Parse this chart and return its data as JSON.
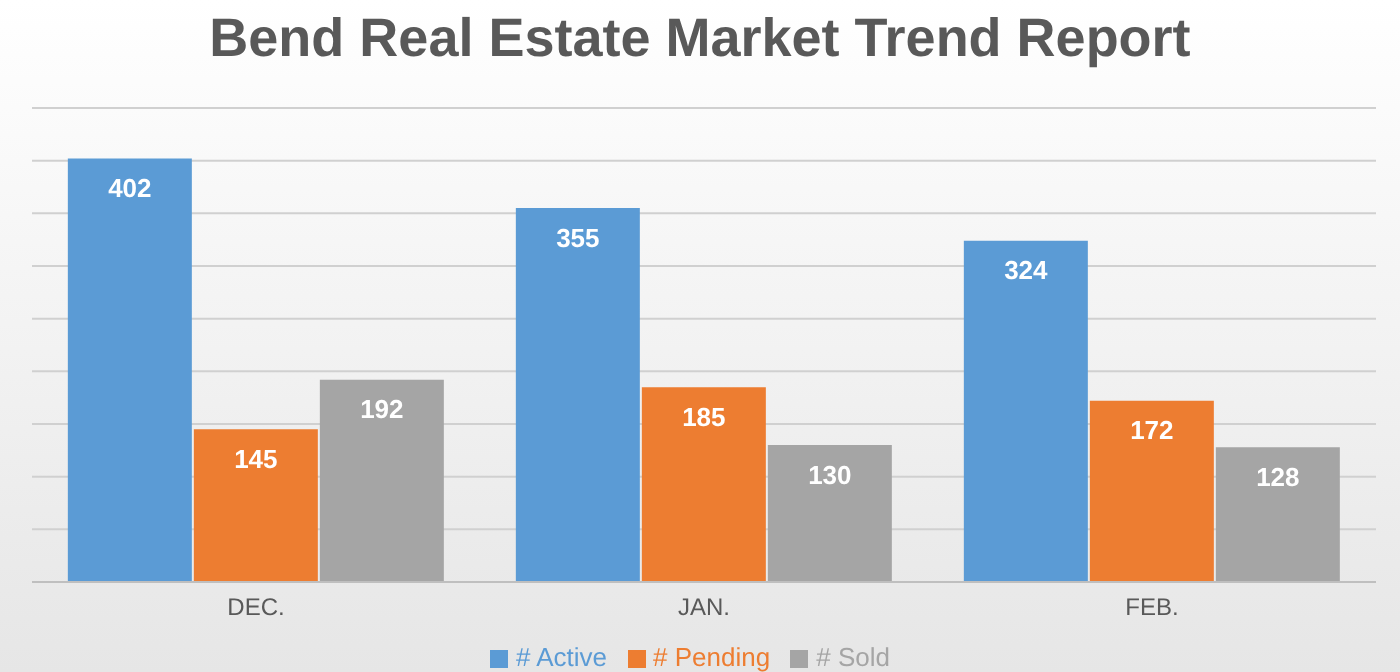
{
  "chart_data": {
    "type": "bar",
    "title": "Bend Real Estate Market Trend Report",
    "categories": [
      "DEC.",
      "JAN.",
      "FEB."
    ],
    "series": [
      {
        "name": "# Active",
        "color": "#5b9bd5",
        "values": [
          402,
          355,
          324
        ]
      },
      {
        "name": "# Pending",
        "color": "#ed7d31",
        "values": [
          145,
          185,
          172
        ]
      },
      {
        "name": "# Sold",
        "color": "#a5a5a5",
        "values": [
          192,
          130,
          128
        ]
      }
    ],
    "ylim": [
      0,
      450
    ],
    "yticks": [
      0,
      {
        "value": 50,
        "label": null
      },
      {
        "value": 100,
        "label": null
      },
      {
        "value": 150,
        "label": null
      },
      {
        "value": 200,
        "label": null
      },
      {
        "value": 250,
        "label": null
      },
      {
        "value": 300,
        "label": null
      },
      {
        "value": 350,
        "label": null
      },
      {
        "value": 400,
        "label": null
      },
      {
        "value": 450,
        "label": null
      }
    ],
    "tick_labels": "x",
    "grid": "y",
    "legend": "bottom",
    "data_labels": true
  }
}
